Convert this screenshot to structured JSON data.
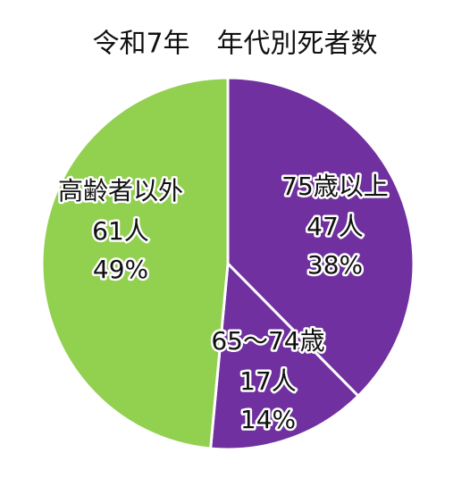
{
  "chart_data": {
    "type": "pie",
    "title": "令和7年　年代別死者数",
    "categories": [
      "75歳以上",
      "65～74歳",
      "高齢者以外"
    ],
    "values": [
      38,
      14,
      49
    ],
    "value_labels": [
      "38%",
      "14%",
      "49%"
    ],
    "counts": [
      47,
      17,
      61
    ],
    "count_labels": [
      "47人",
      "17人",
      "61人"
    ],
    "colors": [
      "#7030a0",
      "#7030a0",
      "#92d050"
    ]
  }
}
